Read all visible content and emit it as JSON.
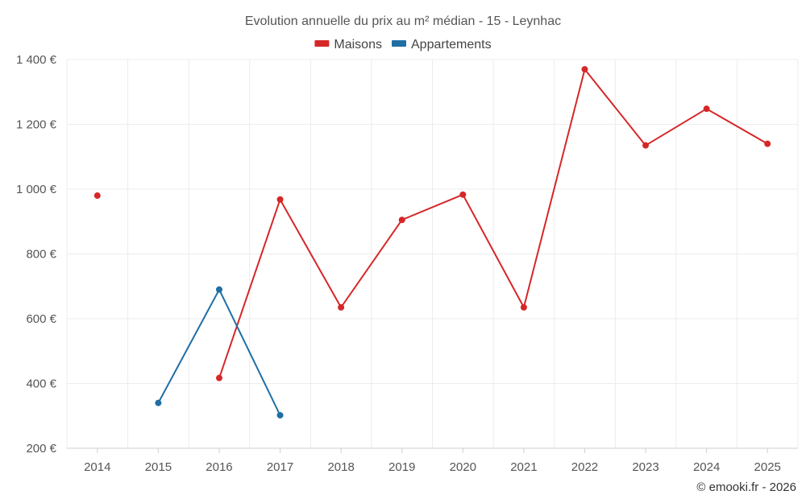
{
  "chart_data": {
    "type": "line",
    "title": "Evolution annuelle du prix au m² médian - 15 - Leynhac",
    "x": [
      "2014",
      "2015",
      "2016",
      "2017",
      "2018",
      "2019",
      "2020",
      "2021",
      "2022",
      "2023",
      "2024",
      "2025"
    ],
    "ylim": [
      200,
      1400
    ],
    "yticks": [
      200,
      400,
      600,
      800,
      1000,
      1200,
      1400
    ],
    "ytick_labels": [
      "200 €",
      "400 €",
      "600 €",
      "800 €",
      "1 000 €",
      "1 200 €",
      "1 400 €"
    ],
    "grid": true,
    "legend_position": "top-center",
    "series": [
      {
        "name": "Maisons",
        "color": "#d62728",
        "values": [
          980,
          null,
          417,
          968,
          635,
          905,
          983,
          635,
          1370,
          1135,
          1248,
          1140
        ]
      },
      {
        "name": "Appartements",
        "color": "#1f6fa3",
        "values": [
          null,
          340,
          690,
          302,
          null,
          null,
          null,
          null,
          null,
          null,
          null,
          null
        ]
      }
    ]
  },
  "credit": "© emooki.fr - 2026"
}
